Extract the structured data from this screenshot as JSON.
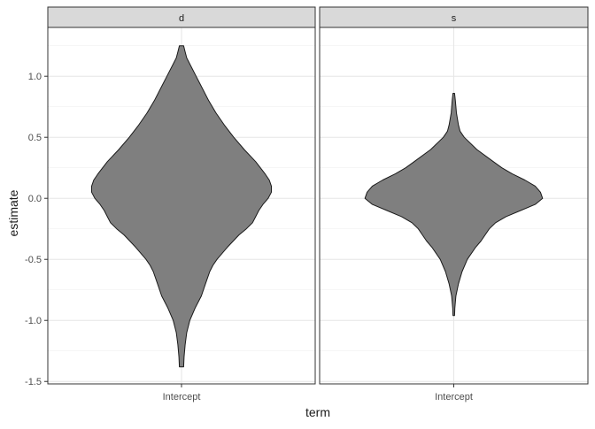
{
  "chart_data": {
    "type": "violin",
    "xlabel": "term",
    "ylabel": "estimate",
    "ylim": [
      -1.52,
      1.4
    ],
    "y_ticks": [
      -1.5,
      -1.0,
      -0.5,
      0.0,
      0.5,
      1.0
    ],
    "y_tick_labels": [
      "-1.5",
      "-1.0",
      "-0.5",
      "0.0",
      "0.5",
      "1.0"
    ],
    "grid": true,
    "fill_color": "#7f7f7f",
    "outline_color": "#1a1a1a",
    "strip_fill": "#d9d9d9",
    "facets": [
      {
        "label": "d",
        "category": "Intercept",
        "density": [
          [
            1.25,
            0.02
          ],
          [
            1.2,
            0.035
          ],
          [
            1.15,
            0.05
          ],
          [
            1.1,
            0.08
          ],
          [
            1.0,
            0.14
          ],
          [
            0.9,
            0.2
          ],
          [
            0.8,
            0.26
          ],
          [
            0.7,
            0.33
          ],
          [
            0.6,
            0.41
          ],
          [
            0.5,
            0.5
          ],
          [
            0.4,
            0.6
          ],
          [
            0.3,
            0.71
          ],
          [
            0.2,
            0.8
          ],
          [
            0.15,
            0.84
          ],
          [
            0.1,
            0.86
          ],
          [
            0.05,
            0.86
          ],
          [
            0.0,
            0.83
          ],
          [
            -0.05,
            0.78
          ],
          [
            -0.1,
            0.74
          ],
          [
            -0.15,
            0.71
          ],
          [
            -0.2,
            0.68
          ],
          [
            -0.25,
            0.62
          ],
          [
            -0.3,
            0.55
          ],
          [
            -0.4,
            0.44
          ],
          [
            -0.5,
            0.34
          ],
          [
            -0.55,
            0.3
          ],
          [
            -0.6,
            0.27
          ],
          [
            -0.7,
            0.23
          ],
          [
            -0.8,
            0.19
          ],
          [
            -0.9,
            0.13
          ],
          [
            -1.0,
            0.08
          ],
          [
            -1.1,
            0.05
          ],
          [
            -1.2,
            0.035
          ],
          [
            -1.3,
            0.025
          ],
          [
            -1.38,
            0.02
          ]
        ]
      },
      {
        "label": "s",
        "category": "Intercept",
        "density": [
          [
            0.86,
            0.008
          ],
          [
            0.8,
            0.015
          ],
          [
            0.7,
            0.025
          ],
          [
            0.6,
            0.045
          ],
          [
            0.55,
            0.06
          ],
          [
            0.5,
            0.1
          ],
          [
            0.4,
            0.22
          ],
          [
            0.3,
            0.38
          ],
          [
            0.25,
            0.46
          ],
          [
            0.2,
            0.56
          ],
          [
            0.15,
            0.68
          ],
          [
            0.1,
            0.78
          ],
          [
            0.05,
            0.83
          ],
          [
            0.0,
            0.85
          ],
          [
            -0.05,
            0.78
          ],
          [
            -0.1,
            0.64
          ],
          [
            -0.15,
            0.5
          ],
          [
            -0.2,
            0.4
          ],
          [
            -0.25,
            0.34
          ],
          [
            -0.3,
            0.3
          ],
          [
            -0.35,
            0.26
          ],
          [
            -0.4,
            0.21
          ],
          [
            -0.5,
            0.13
          ],
          [
            -0.6,
            0.08
          ],
          [
            -0.7,
            0.045
          ],
          [
            -0.8,
            0.02
          ],
          [
            -0.9,
            0.01
          ],
          [
            -0.96,
            0.008
          ]
        ]
      }
    ]
  }
}
